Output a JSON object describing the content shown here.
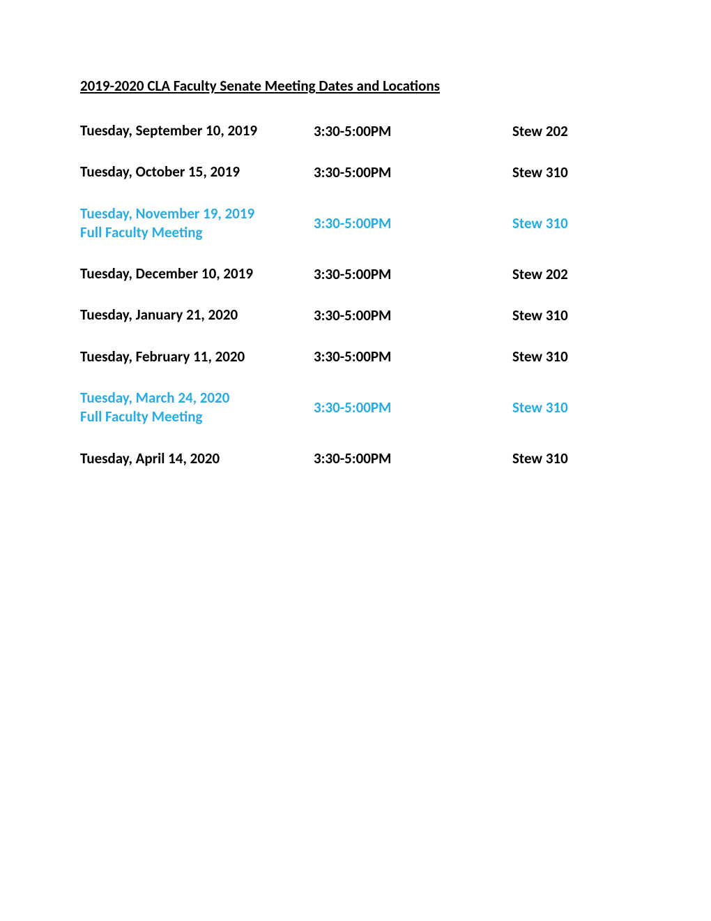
{
  "title": "2019-2020 CLA Faculty Senate Meeting Dates and Locations",
  "colors": {
    "text_default": "#000000",
    "text_highlight": "#29abe2",
    "background": "#ffffff"
  },
  "typography": {
    "title_fontsize": 21,
    "row_fontsize": 21,
    "font_weight": "bold",
    "font_family": "Calibri, Arial, sans-serif"
  },
  "layout": {
    "col_date_width": 335,
    "col_time_width": 285,
    "row_spacing": 32
  },
  "meetings": [
    {
      "date": "Tuesday, September 10, 2019",
      "subtitle": "",
      "time": "3:30-5:00PM",
      "location": "Stew 202",
      "highlighted": false
    },
    {
      "date": "Tuesday, October 15, 2019",
      "subtitle": "",
      "time": "3:30-5:00PM",
      "location": "Stew 310",
      "highlighted": false
    },
    {
      "date": "Tuesday, November 19, 2019",
      "subtitle": "Full Faculty Meeting",
      "time": "3:30-5:00PM",
      "location": "Stew 310",
      "highlighted": true
    },
    {
      "date": "Tuesday, December 10, 2019",
      "subtitle": "",
      "time": "3:30-5:00PM",
      "location": "Stew 202",
      "highlighted": false
    },
    {
      "date": "Tuesday, January 21, 2020",
      "subtitle": "",
      "time": "3:30-5:00PM",
      "location": "Stew 310",
      "highlighted": false
    },
    {
      "date": "Tuesday, February 11, 2020",
      "subtitle": "",
      "time": "3:30-5:00PM",
      "location": "Stew 310",
      "highlighted": false
    },
    {
      "date": "Tuesday, March 24, 2020",
      "subtitle": "Full Faculty Meeting",
      "time": "3:30-5:00PM",
      "location": "Stew 310",
      "highlighted": true
    },
    {
      "date": "Tuesday, April 14, 2020",
      "subtitle": "",
      "time": "3:30-5:00PM",
      "location": "Stew 310",
      "highlighted": false
    }
  ]
}
